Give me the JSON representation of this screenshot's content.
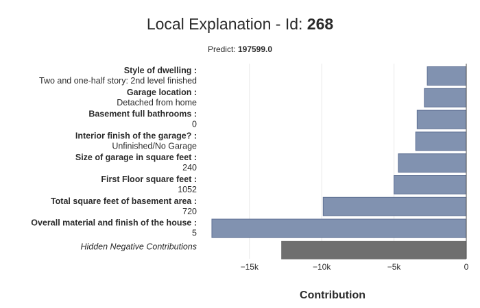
{
  "title_prefix": "Local Explanation - Id: ",
  "title_id": "268",
  "subtitle_prefix": "Predict: ",
  "subtitle_value": "197599.0",
  "colors": {
    "bar": "#8192b0",
    "bar_stroke": "#5d6f93",
    "hidden_bar": "#6f6f6f"
  },
  "chart_data": {
    "type": "bar",
    "orientation": "horizontal",
    "xlabel": "Contribution",
    "xlim": [
      -18500,
      0
    ],
    "xticks": [
      {
        "value": -15000,
        "label": "−15k"
      },
      {
        "value": -10000,
        "label": "−10k"
      },
      {
        "value": -5000,
        "label": "−5k"
      },
      {
        "value": 0,
        "label": "0"
      }
    ],
    "bars": [
      {
        "feature": "Style of dwelling :",
        "value_label": "Two and one-half story: 2nd level finished",
        "contribution": -2700
      },
      {
        "feature": "Garage location :",
        "value_label": "Detached from home",
        "contribution": -2900
      },
      {
        "feature": "Basement full bathrooms :",
        "value_label": "0",
        "contribution": -3400
      },
      {
        "feature": "Interior finish of the garage? :",
        "value_label": "Unfinished/No Garage",
        "contribution": -3500
      },
      {
        "feature": "Size of garage in square feet :",
        "value_label": "240",
        "contribution": -4700
      },
      {
        "feature": "First Floor square feet :",
        "value_label": "1052",
        "contribution": -5000
      },
      {
        "feature": "Total square feet of basement area :",
        "value_label": "720",
        "contribution": -9900
      },
      {
        "feature": "Overall material and finish of the house :",
        "value_label": "5",
        "contribution": -17600
      }
    ],
    "hidden": {
      "label": "Hidden Negative Contributions",
      "contribution": -12800
    },
    "grid": true
  }
}
